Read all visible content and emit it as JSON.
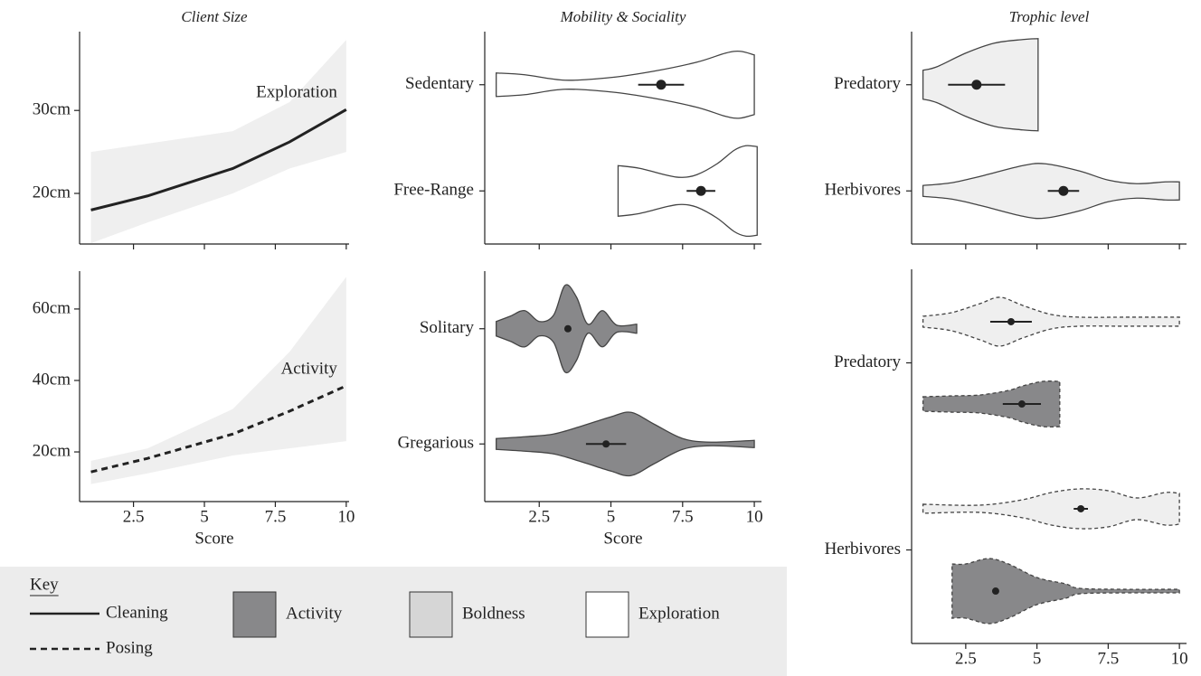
{
  "chart_data": [
    {
      "type": "line",
      "title": "Client Size",
      "x": [
        1,
        3,
        6,
        8,
        10
      ],
      "series": [
        {
          "name": "Exploration",
          "color": "#222222",
          "linestyle": "solid",
          "band_color": "#efefef",
          "values": [
            18,
            19.7,
            23,
            26.2,
            30.1
          ],
          "lower": [
            14,
            16.5,
            20,
            23,
            25
          ],
          "upper": [
            25,
            26,
            27.5,
            31,
            38.5
          ]
        }
      ],
      "xlim": [
        0.6,
        10.1
      ],
      "ylim": [
        13.9,
        39.5
      ],
      "yticks": [
        {
          "value": 20,
          "label": "20cm"
        },
        {
          "value": 30,
          "label": "30cm"
        }
      ]
    },
    {
      "type": "line",
      "x": [
        1,
        3,
        6,
        8,
        10
      ],
      "series": [
        {
          "name": "Activity",
          "color": "#222222",
          "linestyle": "dashed",
          "band_color": "#efefef",
          "values": [
            14.4,
            18.2,
            25,
            31.4,
            38.5
          ],
          "lower": [
            11,
            14,
            19,
            21,
            23
          ],
          "upper": [
            17.5,
            21,
            32,
            48,
            69
          ]
        }
      ],
      "xlim": [
        0.6,
        10.1
      ],
      "ylim": [
        6.1,
        70.6
      ],
      "yticks": [
        {
          "value": 20,
          "label": "20cm"
        },
        {
          "value": 40,
          "label": "40cm"
        },
        {
          "value": 60,
          "label": "60cm"
        }
      ],
      "xticks": [
        2.5,
        5,
        7.5,
        10
      ],
      "xlabel": "Score"
    },
    {
      "type": "violin",
      "title": "Mobility & Sociality",
      "categories": [
        "Sedentary",
        "Free-Range"
      ],
      "series": [
        {
          "color": "#ffffff",
          "linestyle": "solid",
          "means": [
            6.75,
            8.14
          ],
          "errors": [
            0.8,
            0.5
          ],
          "violins": [
            {
              "x": [
                1,
                2,
                3.4,
                5,
                6.5,
                8,
                9,
                9.5,
                10
              ],
              "density": [
                13,
                11,
                5,
                8,
                15,
                25,
                35,
                37,
                33
              ]
            },
            {
              "x": [
                5.25,
                6,
                7,
                7.5,
                8,
                8.7,
                9.3,
                9.7,
                10.1
              ],
              "density": [
                28,
                25,
                17,
                15,
                18,
                30,
                45,
                50,
                49
              ]
            }
          ]
        }
      ],
      "xlim": [
        0.6,
        10.25
      ]
    },
    {
      "type": "violin",
      "categories": [
        "Solitary",
        "Gregarious"
      ],
      "series": [
        {
          "color": "#88888a",
          "linestyle": "solid",
          "means": [
            3.5,
            4.83
          ],
          "errors": [
            0.1,
            0.7
          ],
          "violins": [
            {
              "x": [
                1,
                1.5,
                2,
                2.5,
                3,
                3.4,
                3.8,
                4.2,
                4.7,
                5.2,
                5.9
              ],
              "density": [
                8,
                14,
                20,
                8,
                15,
                48,
                35,
                5,
                20,
                4,
                5
              ]
            },
            {
              "x": [
                1,
                2,
                3,
                4,
                5,
                5.7,
                6.5,
                7.5,
                8.5,
                10
              ],
              "density": [
                6,
                8,
                11,
                20,
                30,
                35,
                22,
                6,
                2,
                4
              ]
            }
          ]
        }
      ],
      "xlim": [
        0.6,
        10.25
      ],
      "xticks": [
        2.5,
        5,
        7.5,
        10
      ],
      "xlabel": "Score"
    },
    {
      "type": "violin",
      "title": "Trophic level",
      "categories": [
        "Predatory",
        "Herbivores"
      ],
      "series": [
        {
          "color": "#efefef",
          "linestyle": "solid",
          "means": [
            2.88,
            5.93
          ],
          "errors": [
            1.0,
            0.55
          ],
          "violins": [
            {
              "x": [
                1,
                1.5,
                2.5,
                3.5,
                4.5,
                5.04
              ],
              "density": [
                16,
                20,
                35,
                46,
                50,
                51
              ]
            },
            {
              "x": [
                1,
                2,
                3,
                4.5,
                5.3,
                6.5,
                7.5,
                8.5,
                9.5,
                10
              ],
              "density": [
                6,
                9,
                16,
                28,
                30,
                22,
                12,
                8,
                10,
                10
              ]
            }
          ]
        }
      ],
      "xlim": [
        0.6,
        10.25
      ]
    },
    {
      "type": "violin",
      "categories": [
        "Predatory",
        "Herbivores"
      ],
      "series": [
        {
          "color": "#efefef",
          "linestyle": "dashed",
          "means": [
            4.09,
            6.54
          ],
          "errors": [
            0.73,
            0.25
          ],
          "violins": [
            {
              "x": [
                1,
                2,
                3,
                3.7,
                4.5,
                5.5,
                6.5,
                8,
                10
              ],
              "density": [
                6,
                10,
                20,
                27,
                18,
                8,
                5,
                5,
                5
              ]
            },
            {
              "x": [
                1,
                3,
                4.5,
                5.5,
                6.5,
                7.5,
                8.5,
                9.5,
                10
              ],
              "density": [
                5,
                4,
                10,
                18,
                22,
                20,
                12,
                18,
                17
              ]
            }
          ]
        },
        {
          "color": "#88888a",
          "linestyle": "dashed",
          "means": [
            4.47,
            3.55
          ],
          "errors": [
            0.67,
            0.05
          ],
          "violins": [
            {
              "x": [
                1,
                2,
                3,
                4,
                4.5,
                5.2,
                5.8
              ],
              "density": [
                8,
                9,
                10,
                15,
                20,
                25,
                25
              ]
            },
            {
              "x": [
                2.02,
                2.5,
                3.3,
                4,
                5,
                6,
                6.5,
                8,
                10
              ],
              "density": [
                30,
                30,
                36,
                30,
                15,
                8,
                3,
                2,
                2
              ]
            }
          ]
        }
      ],
      "xlim": [
        0.6,
        10.25
      ],
      "xticks": [
        2.5,
        5,
        7.5,
        10
      ]
    }
  ],
  "key": {
    "title": "Key",
    "lines": [
      {
        "label": "Cleaning",
        "linestyle": "solid"
      },
      {
        "label": "Posing",
        "linestyle": "dashed"
      }
    ],
    "fills": [
      {
        "label": "Activity",
        "color": "#88888a"
      },
      {
        "label": "Boldness",
        "color": "#d6d6d6"
      },
      {
        "label": "Exploration",
        "color": "#ffffff"
      }
    ]
  }
}
